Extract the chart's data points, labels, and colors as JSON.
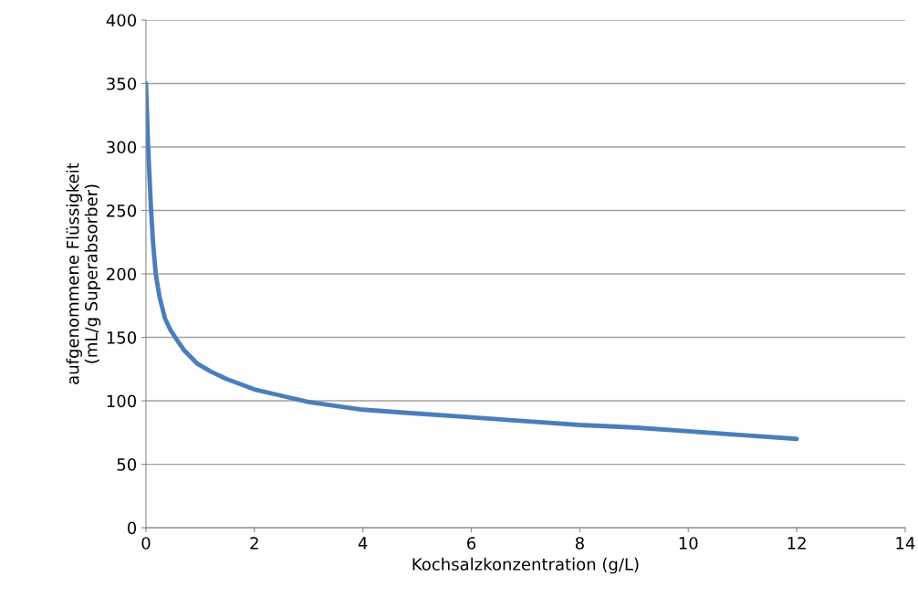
{
  "chart_data": {
    "type": "line",
    "xlabel": "Kochsalzkonzentration (g/L)",
    "ylabel": "aufgenommene Flüssigkeit\n(mL/g Superabsorber)",
    "series": [
      {
        "color": "#4a7ebb",
        "x": [
          0,
          0.02,
          0.04,
          0.07,
          0.095,
          0.13,
          0.18,
          0.25,
          0.35,
          0.45,
          0.54,
          0.7,
          0.94,
          1.2,
          1.5,
          2,
          2.5,
          3,
          3.5,
          4,
          5,
          6,
          7,
          8,
          9,
          10,
          11,
          12
        ],
        "values": [
          350,
          325,
          300,
          272,
          250,
          225,
          200,
          182,
          165,
          156,
          150,
          140,
          129.5,
          123,
          117,
          109,
          104,
          99,
          96,
          93,
          90,
          87,
          84,
          81,
          79,
          76,
          73,
          70
        ]
      }
    ],
    "xlim": [
      0,
      14
    ],
    "xticks": [
      0,
      2,
      4,
      6,
      8,
      10,
      12,
      14
    ],
    "ylim": [
      0,
      400
    ],
    "yticks": [
      0,
      50,
      100,
      150,
      200,
      250,
      300,
      350,
      400
    ],
    "grid": "y",
    "legend": false,
    "marker": "none",
    "line_style": "solid"
  }
}
